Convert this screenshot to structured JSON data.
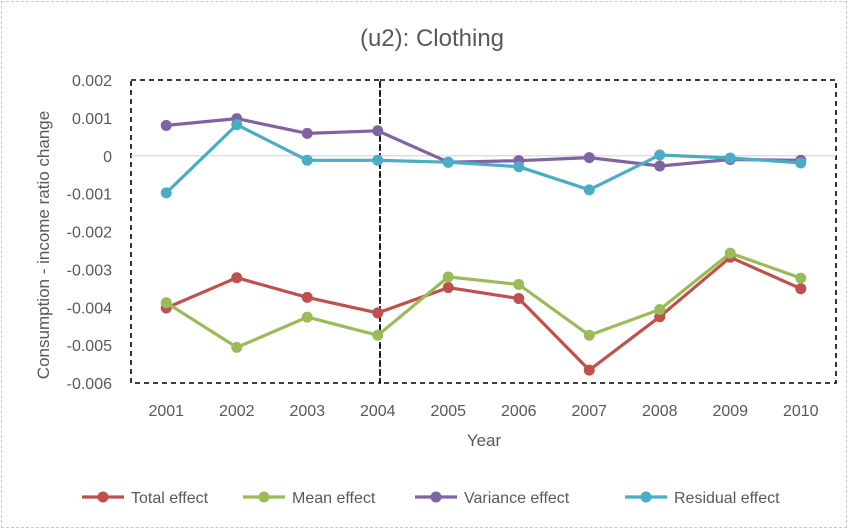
{
  "chart_data": {
    "type": "line",
    "title": "(u2): Clothing",
    "xlabel": "Year",
    "ylabel": "Consumption - income ratio change",
    "ylim": [
      -0.006,
      0.002
    ],
    "yticks": [
      "0.002",
      "0.001",
      "0",
      "-0.001",
      "-0.002",
      "-0.003",
      "-0.004",
      "-0.005",
      "-0.006"
    ],
    "categories": [
      "2001",
      "2002",
      "2003",
      "2004",
      "2005",
      "2006",
      "2007",
      "2008",
      "2009",
      "2010"
    ],
    "grid": false,
    "legend_position": "bottom",
    "series": [
      {
        "name": "Total effect",
        "color": "#c0504d",
        "values": [
          -0.00402,
          -0.00322,
          -0.00374,
          -0.00415,
          -0.00348,
          -0.00377,
          -0.00566,
          -0.00425,
          -0.00268,
          -0.00351
        ]
      },
      {
        "name": "Mean effect",
        "color": "#9bbb59",
        "values": [
          -0.00388,
          -0.00506,
          -0.00426,
          -0.00474,
          -0.0032,
          -0.0034,
          -0.00474,
          -0.00406,
          -0.00257,
          -0.00323
        ]
      },
      {
        "name": "Variance effect",
        "color": "#8064a2",
        "values": [
          0.0008,
          0.00098,
          0.00059,
          0.00066,
          -0.00017,
          -0.00013,
          -5e-05,
          -0.00027,
          -0.0001,
          -0.00012
        ]
      },
      {
        "name": "Residual effect",
        "color": "#4bacc6",
        "values": [
          -0.00098,
          0.00082,
          -0.00012,
          -0.00012,
          -0.00017,
          -0.00029,
          -0.0009,
          2e-05,
          -6e-05,
          -0.00019
        ]
      }
    ]
  }
}
